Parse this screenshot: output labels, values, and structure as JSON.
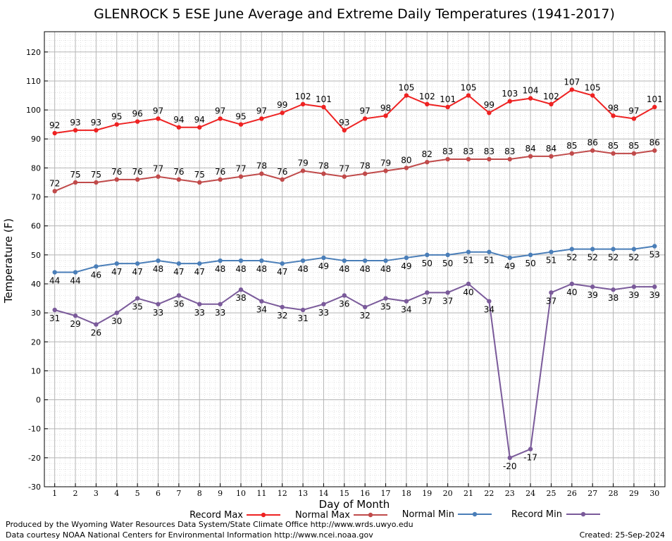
{
  "chart_data": {
    "type": "line",
    "title": "GLENROCK 5 ESE June Average and Extreme Daily Temperatures (1941-2017)",
    "xlabel": "Day of Month",
    "ylabel": "Temperature (F)",
    "ylim": [
      -30,
      127
    ],
    "yticks": [
      -30,
      -20,
      -10,
      0,
      10,
      20,
      30,
      40,
      50,
      60,
      70,
      80,
      90,
      100,
      110,
      120
    ],
    "x": [
      1,
      2,
      3,
      4,
      5,
      6,
      7,
      8,
      9,
      10,
      11,
      12,
      13,
      14,
      15,
      16,
      17,
      18,
      19,
      20,
      21,
      22,
      23,
      24,
      25,
      26,
      27,
      28,
      29,
      30
    ],
    "grid": true,
    "legend_position": "bottom",
    "series": [
      {
        "name": "Record Max",
        "color": "#ee2222",
        "label_pos": "above",
        "values": [
          92,
          93,
          93,
          95,
          96,
          97,
          94,
          94,
          97,
          95,
          97,
          99,
          102,
          101,
          93,
          97,
          98,
          105,
          102,
          101,
          105,
          99,
          103,
          104,
          102,
          107,
          105,
          98,
          97,
          101
        ]
      },
      {
        "name": "Normal Max",
        "color": "#c04a4a",
        "label_pos": "above",
        "values": [
          72,
          75,
          75,
          76,
          76,
          77,
          76,
          75,
          76,
          77,
          78,
          76,
          79,
          78,
          77,
          78,
          79,
          80,
          82,
          83,
          83,
          83,
          83,
          84,
          84,
          85,
          86,
          85,
          85,
          86
        ]
      },
      {
        "name": "Normal Min",
        "color": "#4a7eb8",
        "label_pos": "below",
        "values": [
          44,
          44,
          46,
          47,
          47,
          48,
          47,
          47,
          48,
          48,
          48,
          47,
          48,
          49,
          48,
          48,
          48,
          49,
          50,
          50,
          51,
          51,
          49,
          50,
          51,
          52,
          52,
          52,
          52,
          53
        ]
      },
      {
        "name": "Record Min",
        "color": "#7a5a9a",
        "label_pos": "below",
        "values": [
          31,
          29,
          26,
          30,
          35,
          33,
          36,
          33,
          33,
          38,
          34,
          32,
          31,
          33,
          36,
          32,
          35,
          34,
          37,
          37,
          40,
          34,
          -20,
          -17,
          37,
          40,
          39,
          38,
          39,
          39
        ]
      }
    ]
  },
  "footer": {
    "produced_by": "Produced by the Wyoming Water Resources Data System/State Climate Office http://www.wrds.uwyo.edu",
    "data_courtesy": "Data courtesy NOAA National Centers for Environmental Information http://www.ncei.noaa.gov",
    "created": "Created:  25-Sep-2024"
  }
}
